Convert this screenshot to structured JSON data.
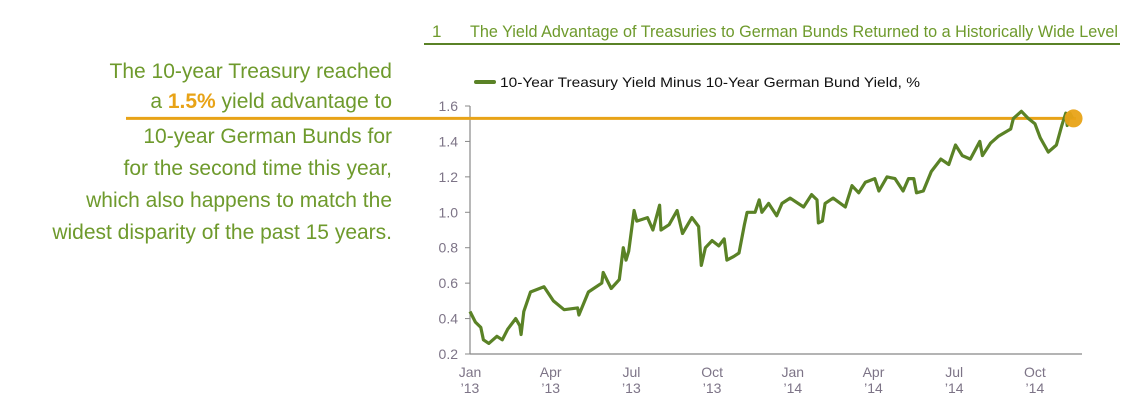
{
  "callout": {
    "line1": "The 10-year Treasury reached",
    "line2_pre": "a ",
    "line2_highlight": "1.5%",
    "line2_post": " yield advantage to",
    "line3": "10-year German Bunds for",
    "line4": "for the second time this year,",
    "line5": "which also happens to match the",
    "line6": "widest disparity of the past 15 years."
  },
  "colors": {
    "series": "#5a8226",
    "text_green": "#6e9a2c",
    "highlight": "#e8a317",
    "axis": "#888888",
    "tick_text": "#7d7487"
  },
  "chart_data": {
    "type": "line",
    "figure_number": "1",
    "title": "The Yield Advantage of Treasuries to German Bunds Returned to a Historically Wide Level",
    "legend": "10-Year Treasury Yield Minus 10-Year German Bund Yield, %",
    "legend_position": "top-left",
    "xlabel": "",
    "ylabel": "",
    "x_unit": "months since Jan 2013",
    "xlim": [
      0,
      22.7
    ],
    "ylim": [
      0.2,
      1.6
    ],
    "yticks": [
      "0.2",
      "0.4",
      "0.6",
      "0.8",
      "1.0",
      "1.2",
      "1.4",
      "1.6"
    ],
    "xticks": [
      {
        "month": 0,
        "label1": "Jan",
        "label2": "’13"
      },
      {
        "month": 3,
        "label1": "Apr",
        "label2": "’13"
      },
      {
        "month": 6,
        "label1": "Jul",
        "label2": "’13"
      },
      {
        "month": 9,
        "label1": "Oct",
        "label2": "’13"
      },
      {
        "month": 12,
        "label1": "Jan",
        "label2": "’14"
      },
      {
        "month": 15,
        "label1": "Apr",
        "label2": "’14"
      },
      {
        "month": 18,
        "label1": "Jul",
        "label2": "’14"
      },
      {
        "month": 21,
        "label1": "Oct",
        "label2": "’14"
      }
    ],
    "reference_line": {
      "value": 1.53,
      "label": "1.5%"
    },
    "grid": false,
    "series": [
      {
        "name": "10-Year Treasury Yield Minus 10-Year German Bund Yield, %",
        "x": [
          0,
          0.2,
          0.4,
          0.5,
          0.7,
          1.0,
          1.2,
          1.4,
          1.7,
          1.85,
          1.9,
          2.0,
          2.25,
          2.75,
          3.1,
          3.5,
          4.0,
          4.05,
          4.4,
          4.9,
          4.95,
          5.25,
          5.55,
          5.7,
          5.8,
          5.9,
          6.1,
          6.2,
          6.6,
          6.8,
          7.05,
          7.1,
          7.4,
          7.7,
          7.9,
          8.25,
          8.5,
          8.6,
          8.75,
          9.0,
          9.25,
          9.45,
          9.55,
          9.8,
          10.0,
          10.2,
          10.3,
          10.6,
          10.75,
          10.85,
          11.1,
          11.4,
          11.6,
          11.9,
          12.4,
          12.7,
          12.9,
          12.95,
          13.1,
          13.2,
          13.5,
          13.95,
          14.2,
          14.45,
          14.7,
          15.05,
          15.2,
          15.5,
          15.8,
          16.1,
          16.3,
          16.5,
          16.6,
          16.85,
          17.15,
          17.5,
          17.8,
          18.05,
          18.3,
          18.6,
          18.95,
          19.05,
          19.35,
          19.65,
          20.1,
          20.2,
          20.5,
          20.75,
          21.0,
          21.2,
          21.5,
          21.8,
          22.0,
          22.15,
          22.2,
          22.3,
          22.4
        ],
        "y": [
          0.44,
          0.38,
          0.35,
          0.28,
          0.26,
          0.3,
          0.28,
          0.34,
          0.4,
          0.36,
          0.31,
          0.44,
          0.55,
          0.58,
          0.5,
          0.45,
          0.46,
          0.42,
          0.55,
          0.6,
          0.66,
          0.57,
          0.62,
          0.8,
          0.73,
          0.78,
          1.01,
          0.95,
          0.97,
          0.9,
          1.04,
          0.9,
          0.93,
          1.01,
          0.88,
          0.97,
          0.92,
          0.7,
          0.8,
          0.84,
          0.81,
          0.85,
          0.73,
          0.75,
          0.77,
          0.93,
          1.0,
          1.0,
          1.07,
          1.0,
          1.05,
          0.98,
          1.05,
          1.08,
          1.03,
          1.1,
          1.07,
          0.94,
          0.95,
          1.05,
          1.08,
          1.03,
          1.15,
          1.11,
          1.17,
          1.19,
          1.12,
          1.2,
          1.19,
          1.12,
          1.19,
          1.19,
          1.11,
          1.12,
          1.23,
          1.3,
          1.27,
          1.38,
          1.32,
          1.3,
          1.4,
          1.32,
          1.39,
          1.43,
          1.47,
          1.53,
          1.57,
          1.53,
          1.5,
          1.42,
          1.34,
          1.38,
          1.49,
          1.56,
          1.49,
          1.56,
          1.53
        ]
      }
    ]
  }
}
